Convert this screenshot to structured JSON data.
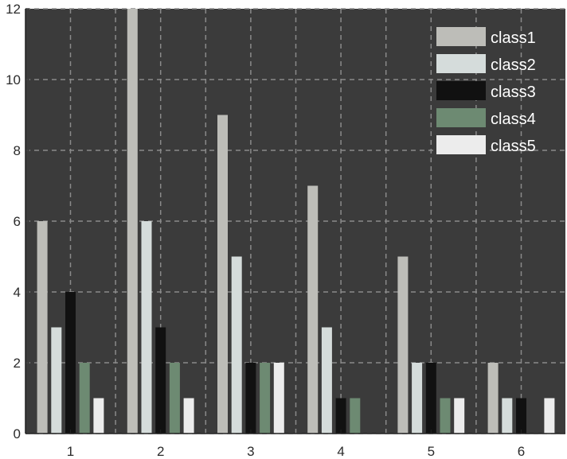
{
  "chart_data": {
    "type": "bar",
    "categories": [
      "1",
      "2",
      "3",
      "4",
      "5",
      "6"
    ],
    "series": [
      {
        "name": "class1",
        "color": "#bdbdb8",
        "values": [
          6,
          12,
          9,
          7,
          5,
          2
        ]
      },
      {
        "name": "class2",
        "color": "#d5dcdb",
        "values": [
          3,
          6,
          5,
          3,
          2,
          1
        ]
      },
      {
        "name": "class3",
        "color": "#111111",
        "values": [
          4,
          3,
          2,
          1,
          2,
          1
        ]
      },
      {
        "name": "class4",
        "color": "#6d8a72",
        "values": [
          2,
          2,
          2,
          1,
          1,
          0
        ]
      },
      {
        "name": "class5",
        "color": "#ececec",
        "values": [
          1,
          1,
          2,
          0,
          1,
          1
        ]
      }
    ],
    "ylim": [
      0,
      12
    ],
    "yticks": [
      "0",
      "2",
      "4",
      "6",
      "8",
      "10",
      "12"
    ],
    "grid": true,
    "legend_position": "top-right",
    "background": "#3b3b3b",
    "grid_color": "#8a8a8a"
  }
}
